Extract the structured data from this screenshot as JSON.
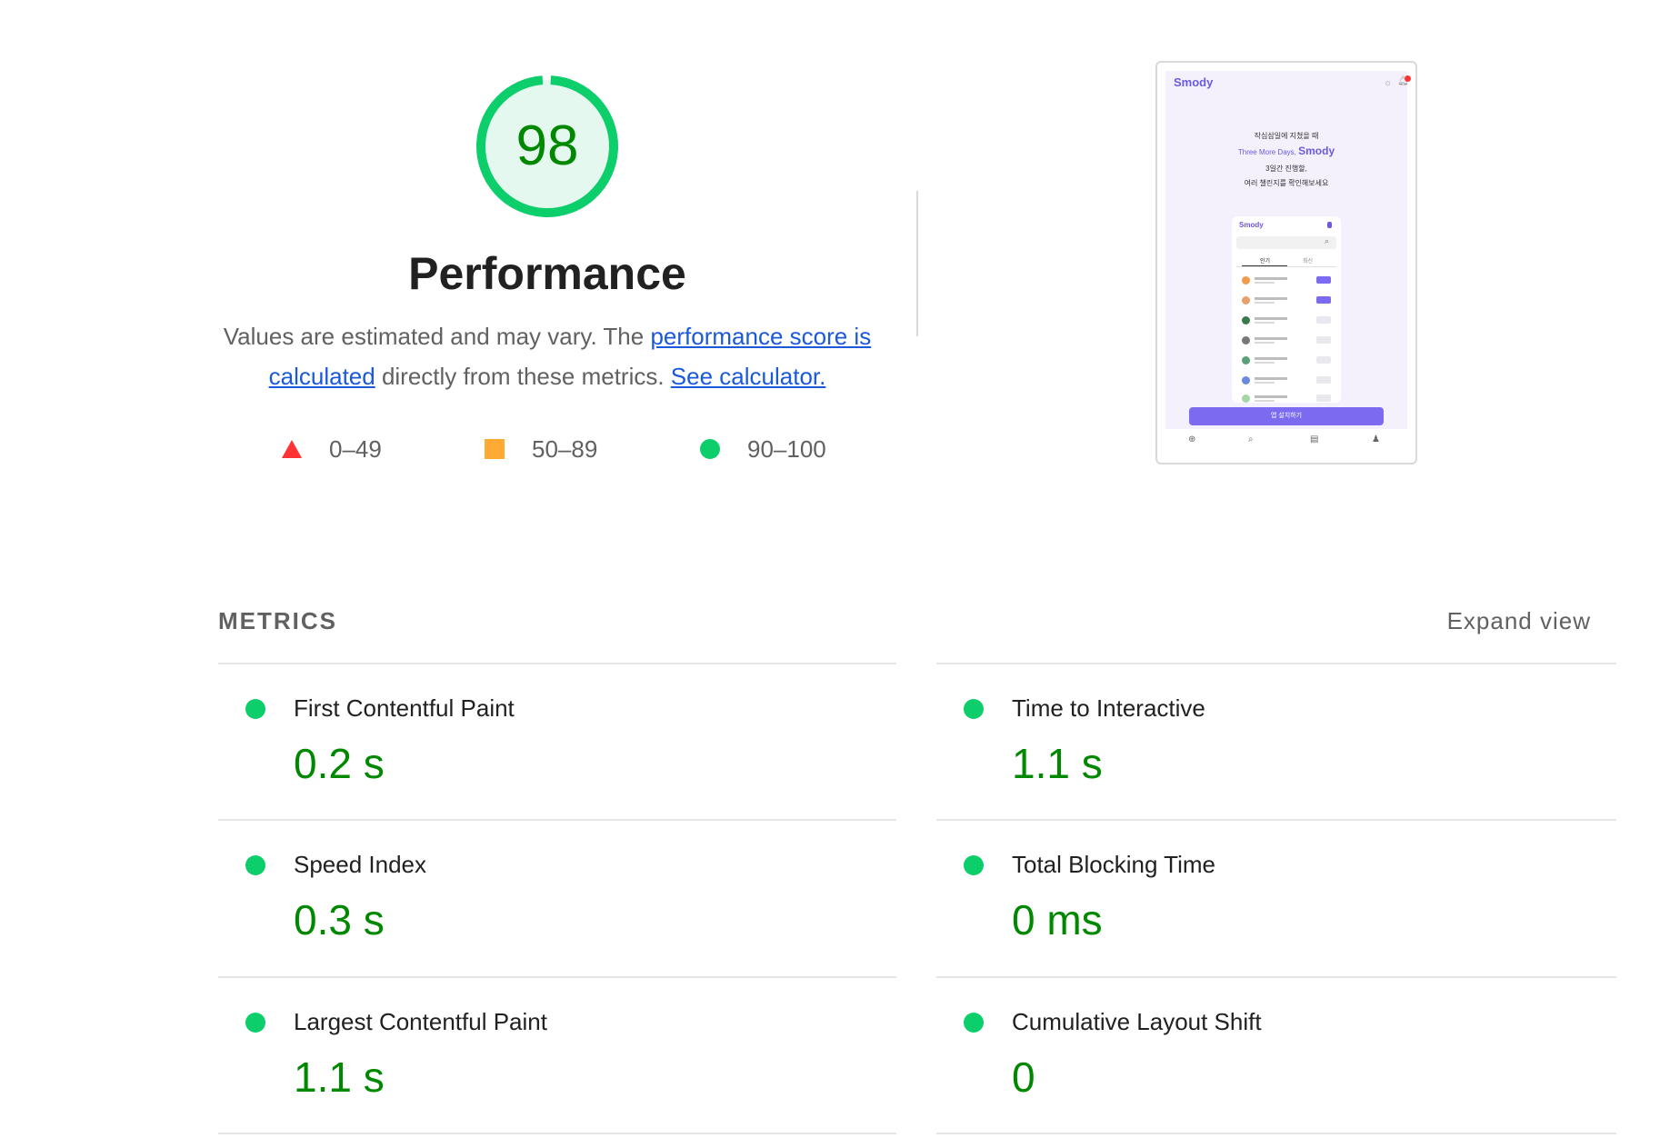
{
  "score": {
    "value": "98",
    "fraction": 0.98,
    "title": "Performance",
    "color": "#0cce6b",
    "text_color": "#008800",
    "fill_color": "#e5f8ef"
  },
  "description": {
    "before": "Values are estimated and may vary. The ",
    "link1": "performance score is calculated",
    "middle": " directly from these metrics. ",
    "link2": "See calculator."
  },
  "legend": [
    {
      "range": "0–49",
      "shape": "triangle",
      "color": "#ff3333"
    },
    {
      "range": "50–89",
      "shape": "square",
      "color": "#ffaa33"
    },
    {
      "range": "90–100",
      "shape": "circle",
      "color": "#0cce6b"
    }
  ],
  "screenshot": {
    "brand": "Smody",
    "line1": "작심삼일에 지쳤을 때",
    "line2_prefix": "Three More Days, ",
    "line2_brand": "Smody",
    "line3": "3일간 진행할,",
    "line4": "여러 챌린지를 확인해보세요",
    "card_brand": "Smody",
    "tab1": "인기",
    "tab2": "최신",
    "cta": "앱 설치하기"
  },
  "metrics": {
    "heading": "METRICS",
    "expand_label": "Expand view",
    "items": [
      {
        "title": "First Contentful Paint",
        "value": "0.2 s",
        "status": "good"
      },
      {
        "title": "Time to Interactive",
        "value": "1.1 s",
        "status": "good"
      },
      {
        "title": "Speed Index",
        "value": "0.3 s",
        "status": "good"
      },
      {
        "title": "Total Blocking Time",
        "value": "0 ms",
        "status": "good"
      },
      {
        "title": "Largest Contentful Paint",
        "value": "1.1 s",
        "status": "good"
      },
      {
        "title": "Cumulative Layout Shift",
        "value": "0",
        "status": "good"
      }
    ]
  }
}
